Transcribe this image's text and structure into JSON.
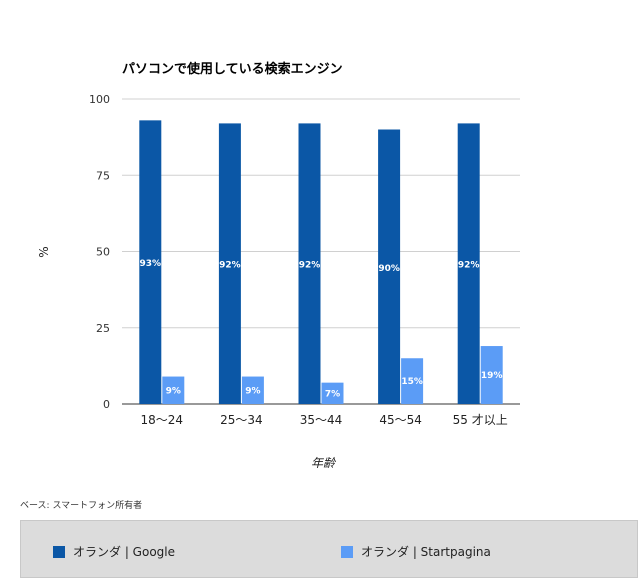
{
  "chart_data": {
    "type": "bar",
    "title": "パソコンで使用している検索エンジン",
    "xlabel": "年齢",
    "ylabel": "%",
    "ylim": [
      0,
      100
    ],
    "yticks": [
      0,
      25,
      50,
      75,
      100
    ],
    "categories": [
      "18〜24",
      "25〜34",
      "35〜44",
      "45〜54",
      "55 才以上"
    ],
    "series": [
      {
        "name": "オランダ | Google",
        "values": [
          93,
          92,
          92,
          90,
          92
        ],
        "labels": [
          "93%",
          "92%",
          "92%",
          "90%",
          "92%"
        ],
        "color": "#0b57a6"
      },
      {
        "name": "オランダ | Startpagina",
        "values": [
          9,
          9,
          7,
          15,
          19
        ],
        "labels": [
          "9%",
          "9%",
          "7%",
          "15%",
          "19%"
        ],
        "color": "#5b9cf6"
      }
    ],
    "grid": true,
    "legend_position": "bottom"
  },
  "footnote": "ベース: スマートフォン所有者",
  "colors": {
    "grid": "#d0d0d0",
    "axis": "#333333",
    "legend_bg": "#dcdcdc"
  }
}
